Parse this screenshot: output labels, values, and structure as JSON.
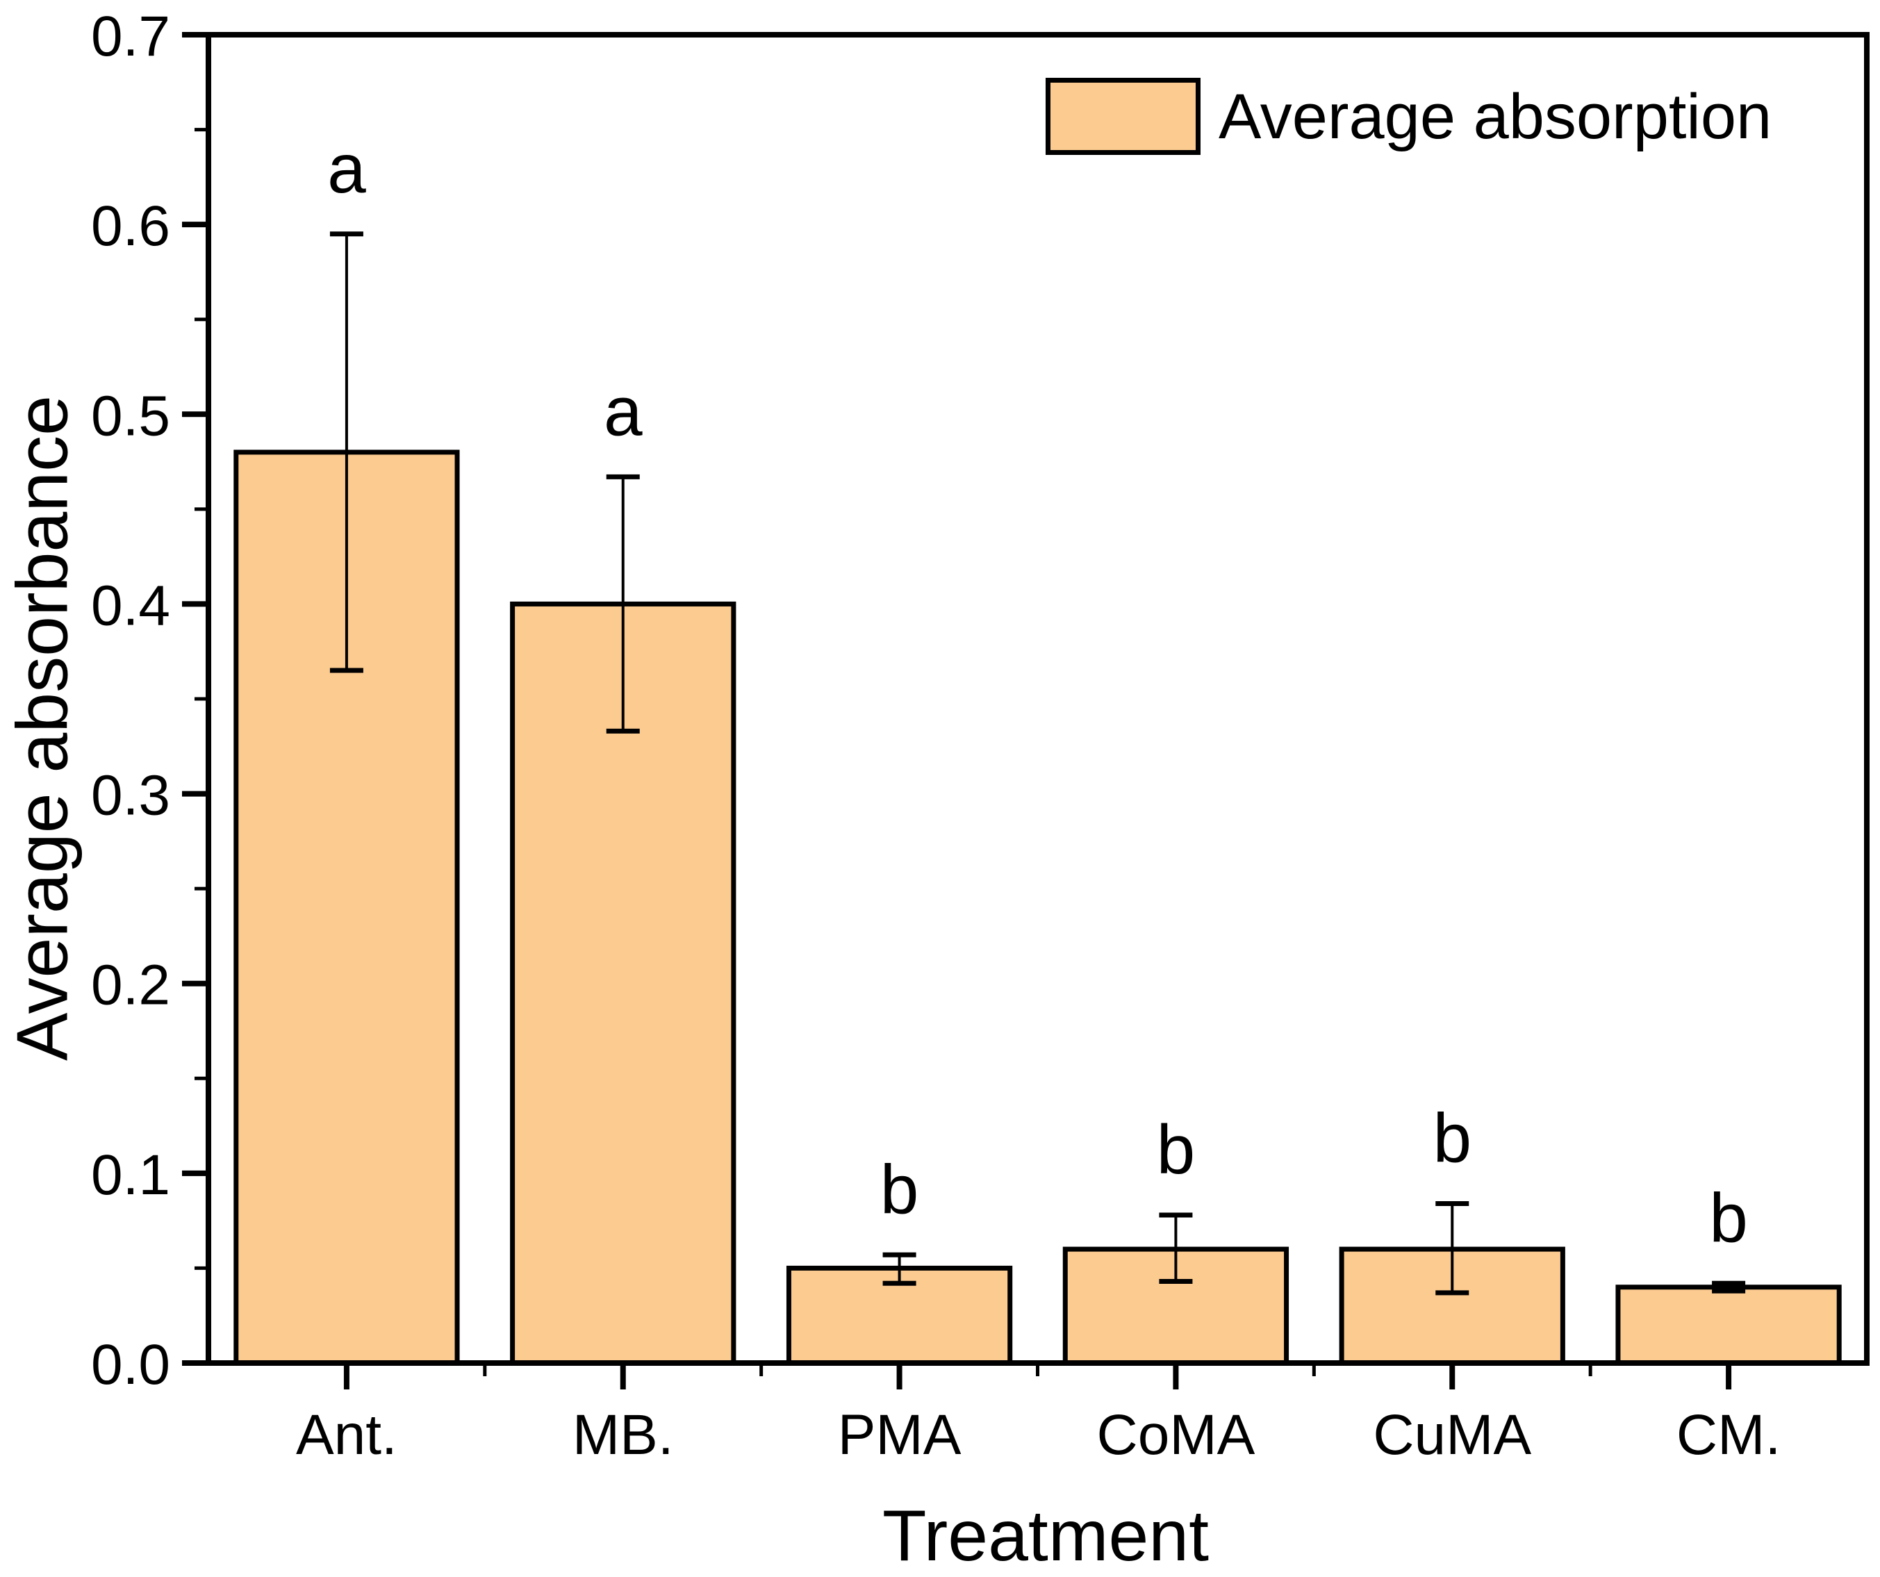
{
  "chart_data": {
    "type": "bar",
    "title": "",
    "xlabel": "Treatment",
    "ylabel": "Average absorbance",
    "legend": {
      "label": "Average absorption",
      "position": "top-right"
    },
    "categories": [
      "Ant.",
      "MB.",
      "PMA",
      "CoMA",
      "CuMA",
      "CM."
    ],
    "series": [
      {
        "name": "Average absorption",
        "values": [
          0.48,
          0.4,
          0.05,
          0.06,
          0.06,
          0.04
        ],
        "error_upper": [
          0.595,
          0.467,
          0.057,
          0.078,
          0.084,
          0.042
        ],
        "error_lower": [
          0.365,
          0.333,
          0.042,
          0.043,
          0.037,
          0.038
        ]
      }
    ],
    "significance_letters": [
      "a",
      "a",
      "b",
      "b",
      "b",
      "b"
    ],
    "ylim": [
      0.0,
      0.7
    ],
    "ytick_step": 0.1,
    "ytick_minor_step": 0.05,
    "ytick_labels": [
      "0.0",
      "0.1",
      "0.2",
      "0.3",
      "0.4",
      "0.5",
      "0.6",
      "0.7"
    ],
    "grid": false,
    "legend_position": "top-right",
    "colors": {
      "bar_fill": "#FCCB90",
      "bar_edge": "#000000",
      "axis": "#000000",
      "text": "#000000",
      "background": "#FFFFFF"
    }
  }
}
